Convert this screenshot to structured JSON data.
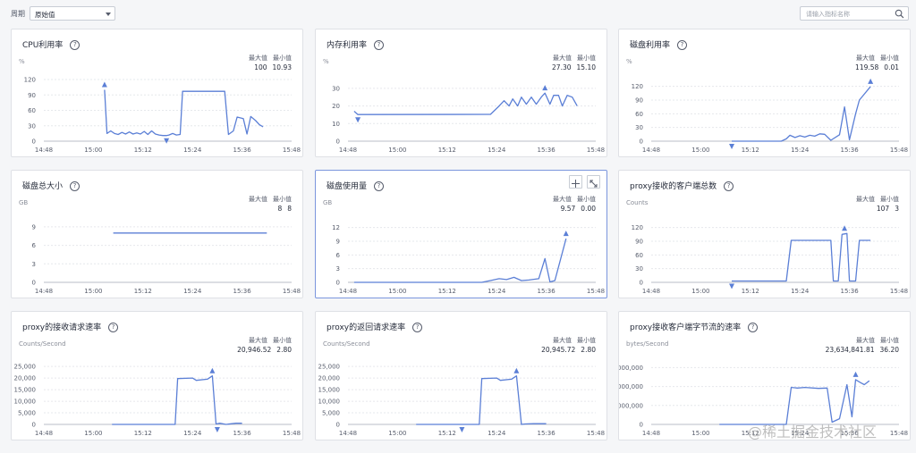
{
  "filter": {
    "period_label": "周期",
    "period_value": "原始值",
    "search_placeholder": "请输入指标名称"
  },
  "stat_labels": {
    "max": "最大值",
    "min": "最小值"
  },
  "accent_color": "#5b7fd6",
  "x_ticks": [
    "14:48",
    "15:00",
    "15:12",
    "15:24",
    "15:36",
    "15:48"
  ],
  "panels": [
    {
      "title": "CPU利用率",
      "unit": "%",
      "max": "100",
      "min": "10.93",
      "y_ticks": [
        "0",
        "30",
        "60",
        "90",
        "120"
      ],
      "ymax": 120,
      "series": [
        [
          0.49,
          100
        ],
        [
          0.51,
          15
        ],
        [
          0.54,
          20
        ],
        [
          0.57,
          15
        ],
        [
          0.6,
          13
        ],
        [
          0.63,
          17
        ],
        [
          0.66,
          14
        ],
        [
          0.69,
          18
        ],
        [
          0.72,
          14
        ],
        [
          0.75,
          16
        ],
        [
          0.78,
          14
        ],
        [
          0.81,
          19
        ],
        [
          0.84,
          13
        ],
        [
          0.87,
          20
        ],
        [
          0.9,
          14
        ],
        [
          0.93,
          12
        ],
        [
          0.96,
          11
        ],
        [
          0.99,
          10.93
        ],
        [
          1.01,
          12
        ],
        [
          1.04,
          15
        ],
        [
          1.07,
          12
        ],
        [
          1.1,
          13
        ],
        [
          1.12,
          97
        ],
        [
          1.46,
          97
        ],
        [
          1.49,
          13
        ],
        [
          1.53,
          20
        ],
        [
          1.56,
          47
        ],
        [
          1.61,
          44
        ],
        [
          1.64,
          14
        ],
        [
          1.67,
          48
        ],
        [
          1.71,
          40
        ],
        [
          1.74,
          32
        ],
        [
          1.77,
          28
        ]
      ],
      "max_pt": [
        0.49,
        100
      ],
      "min_pt": [
        0.99,
        10.93
      ]
    },
    {
      "title": "内存利用率",
      "unit": "%",
      "max": "27.30",
      "min": "15.10",
      "y_ticks": [
        "0",
        "10",
        "20",
        "30"
      ],
      "ymax": 35,
      "series": [
        [
          0.05,
          17
        ],
        [
          0.08,
          15.1
        ],
        [
          1.15,
          15.2
        ],
        [
          1.22,
          20
        ],
        [
          1.26,
          23
        ],
        [
          1.3,
          20
        ],
        [
          1.33,
          24
        ],
        [
          1.37,
          20
        ],
        [
          1.4,
          25
        ],
        [
          1.44,
          21
        ],
        [
          1.48,
          25
        ],
        [
          1.52,
          21
        ],
        [
          1.56,
          25
        ],
        [
          1.59,
          27.3
        ],
        [
          1.63,
          21
        ],
        [
          1.66,
          26
        ],
        [
          1.7,
          26
        ],
        [
          1.73,
          20
        ],
        [
          1.77,
          26
        ],
        [
          1.81,
          25
        ],
        [
          1.85,
          20
        ]
      ],
      "max_pt": [
        1.59,
        27.3
      ],
      "min_pt": [
        0.08,
        15.1
      ]
    },
    {
      "title": "磁盘利用率",
      "unit": "%",
      "max": "119.58",
      "min": "0.01",
      "y_ticks": [
        "0",
        "30",
        "60",
        "90",
        "120"
      ],
      "ymax": 135,
      "series": [
        [
          0.65,
          0.01
        ],
        [
          1.05,
          0.05
        ],
        [
          1.09,
          5
        ],
        [
          1.12,
          13
        ],
        [
          1.16,
          8
        ],
        [
          1.2,
          12
        ],
        [
          1.24,
          9
        ],
        [
          1.28,
          13
        ],
        [
          1.32,
          11
        ],
        [
          1.36,
          16
        ],
        [
          1.4,
          15
        ],
        [
          1.45,
          2
        ],
        [
          1.52,
          14
        ],
        [
          1.56,
          75
        ],
        [
          1.6,
          3
        ],
        [
          1.65,
          60
        ],
        [
          1.68,
          90
        ],
        [
          1.77,
          119.58
        ]
      ],
      "max_pt": [
        1.77,
        119.58
      ],
      "min_pt": [
        0.65,
        0.01
      ]
    },
    {
      "title": "磁盘总大小",
      "unit": "GB",
      "max": "8",
      "min": "8",
      "y_ticks": [
        "0",
        "3",
        "6",
        "9"
      ],
      "ymax": 10,
      "series": [
        [
          0.56,
          8
        ],
        [
          1.8,
          8
        ]
      ],
      "max_pt": null,
      "min_pt": null
    },
    {
      "title": "磁盘使用量",
      "unit": "GB",
      "max": "9.57",
      "min": "0.00",
      "y_ticks": [
        "0",
        "3",
        "6",
        "9",
        "12"
      ],
      "ymax": 13.5,
      "series": [
        [
          0.05,
          0
        ],
        [
          1.08,
          0
        ],
        [
          1.15,
          0.4
        ],
        [
          1.22,
          0.8
        ],
        [
          1.28,
          0.6
        ],
        [
          1.34,
          1.1
        ],
        [
          1.4,
          0.4
        ],
        [
          1.46,
          0.5
        ],
        [
          1.54,
          0.8
        ],
        [
          1.59,
          5.2
        ],
        [
          1.63,
          0.1
        ],
        [
          1.67,
          0.4
        ],
        [
          1.76,
          9.57
        ]
      ],
      "max_pt": [
        1.76,
        9.57
      ],
      "min_pt": null,
      "tools": [
        "crosshair-icon",
        "expand-icon"
      ]
    },
    {
      "title": "proxy接收的客户端总数",
      "unit": "Counts",
      "max": "107",
      "min": "3",
      "y_ticks": [
        "0",
        "30",
        "60",
        "90",
        "120"
      ],
      "ymax": 135,
      "series": [
        [
          0.65,
          3
        ],
        [
          1.09,
          3
        ],
        [
          1.13,
          92
        ],
        [
          1.45,
          92
        ],
        [
          1.47,
          3
        ],
        [
          1.51,
          3
        ],
        [
          1.54,
          105
        ],
        [
          1.58,
          107
        ],
        [
          1.6,
          3
        ],
        [
          1.65,
          3
        ],
        [
          1.68,
          92
        ],
        [
          1.77,
          92
        ]
      ],
      "max_pt": [
        1.56,
        107
      ],
      "min_pt": [
        0.65,
        3
      ]
    },
    {
      "title": "proxy的接收请求速率",
      "unit": "Counts/Second",
      "max": "20,946.52",
      "min": "2.80",
      "y_ticks": [
        "0",
        "5,000",
        "10,000",
        "15,000",
        "20,000",
        "25,000"
      ],
      "ymax": 27000,
      "series": [
        [
          0.55,
          0
        ],
        [
          1.06,
          0
        ],
        [
          1.08,
          19800
        ],
        [
          1.2,
          20000
        ],
        [
          1.23,
          19000
        ],
        [
          1.32,
          19500
        ],
        [
          1.36,
          20946.52
        ],
        [
          1.39,
          200
        ],
        [
          1.42,
          500
        ],
        [
          1.47,
          0
        ],
        [
          1.55,
          500
        ],
        [
          1.6,
          500
        ]
      ],
      "max_pt": [
        1.36,
        20946.52
      ],
      "min_pt": [
        1.4,
        2.8
      ]
    },
    {
      "title": "proxy的返回请求速率",
      "unit": "Counts/Second",
      "max": "20,945.72",
      "min": "2.80",
      "y_ticks": [
        "0",
        "5,000",
        "10,000",
        "15,000",
        "20,000",
        "25,000"
      ],
      "ymax": 27000,
      "series": [
        [
          0.55,
          0
        ],
        [
          1.06,
          0
        ],
        [
          1.08,
          19800
        ],
        [
          1.2,
          20000
        ],
        [
          1.23,
          19000
        ],
        [
          1.32,
          19500
        ],
        [
          1.36,
          20945.72
        ],
        [
          1.4,
          0
        ],
        [
          1.43,
          200
        ],
        [
          1.5,
          300
        ],
        [
          1.6,
          300
        ]
      ],
      "max_pt": [
        1.36,
        20945.72
      ],
      "min_pt": [
        0.92,
        2.8
      ]
    },
    {
      "title": "proxy接收客户端字节流的速率",
      "unit": "bytes/Second",
      "max": "23,634,841.81",
      "min": "36.20",
      "y_ticks": [
        "0",
        "10,000,000",
        "20,000,000",
        "30,000,000"
      ],
      "ymax": 33000000,
      "series": [
        [
          0.55,
          36.2
        ],
        [
          1.09,
          36.2
        ],
        [
          1.13,
          19500000
        ],
        [
          1.18,
          19200000
        ],
        [
          1.24,
          19500000
        ],
        [
          1.35,
          19000000
        ],
        [
          1.42,
          19200000
        ],
        [
          1.46,
          1200000
        ],
        [
          1.52,
          3000000
        ],
        [
          1.58,
          21000000
        ],
        [
          1.62,
          4000000
        ],
        [
          1.65,
          23634841.81
        ],
        [
          1.69,
          22000000
        ],
        [
          1.72,
          21000000
        ],
        [
          1.76,
          23000000
        ]
      ],
      "max_pt": [
        1.65,
        23634841.81
      ],
      "min_pt": null
    }
  ],
  "watermark": "@稀土掘金技术社区"
}
